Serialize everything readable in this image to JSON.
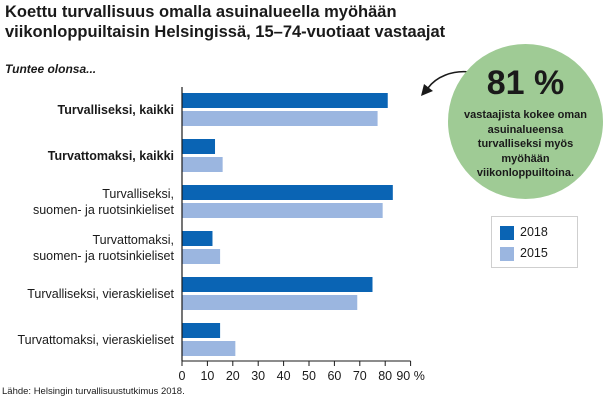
{
  "title": "Koettu turvallisuus omalla asuinalueella myöhään viikonloppuiltaisin Helsingissä, 15–74-vuotiaat vastaajat",
  "subtitle": "Tuntee olonsa...",
  "source": "Lähde: Helsingin turvallisuustutkimus 2018.",
  "callout": {
    "value": "81 %",
    "text": "vastaajista kokee oman asuinalueensa turvalliseksi myös myöhään viikonloppuiltoina."
  },
  "colors": {
    "s2018": "#0a64b4",
    "s2015": "#9bb6e0",
    "callout_bg": "#9fcb95",
    "axis": "#1a1a1a"
  },
  "chart_data": {
    "type": "bar",
    "orientation": "horizontal",
    "categories": [
      [
        "Turvalliseksi, kaikki"
      ],
      [
        "Turvattomaksi, kaikki"
      ],
      [
        "Turvalliseksi,",
        "suomen- ja ruotsinkieliset"
      ],
      [
        "Turvattomaksi,",
        "suomen- ja ruotsinkieliset"
      ],
      [
        "Turvalliseksi, vieraskieliset"
      ],
      [
        "Turvattomaksi, vieraskieliset"
      ]
    ],
    "bold_categories": [
      true,
      true,
      false,
      false,
      false,
      false
    ],
    "series": [
      {
        "name": "2018",
        "values": [
          81,
          13,
          83,
          12,
          75,
          15
        ]
      },
      {
        "name": "2015",
        "values": [
          77,
          16,
          79,
          15,
          69,
          21
        ]
      }
    ],
    "xticks": [
      "0",
      "10",
      "20",
      "30",
      "40",
      "50",
      "60",
      "70",
      "80",
      "90 %"
    ],
    "xlim": [
      0,
      90
    ],
    "legend": "right",
    "grid": false
  }
}
